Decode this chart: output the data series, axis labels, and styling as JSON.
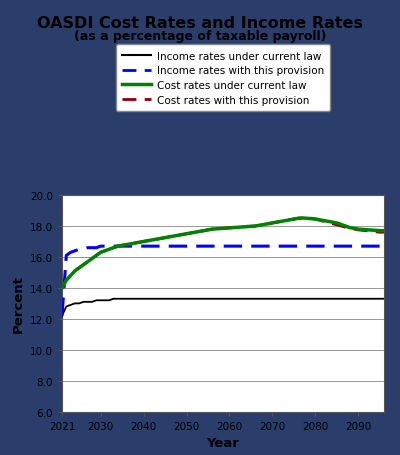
{
  "title": "OASDI Cost Rates and Income Rates",
  "subtitle": "(as a percentage of taxable payroll)",
  "xlabel": "Year",
  "ylabel": "Percent",
  "ylim": [
    6.0,
    20.0
  ],
  "yticks": [
    6.0,
    8.0,
    10.0,
    12.0,
    14.0,
    16.0,
    18.0,
    20.0
  ],
  "xticks": [
    2021,
    2030,
    2040,
    2050,
    2060,
    2070,
    2080,
    2090
  ],
  "outer_bg_color": "#2b3e6b",
  "inner_bg_color": "#aab8d0",
  "plot_bg_color": "#ffffff",
  "years": [
    2021,
    2022,
    2023,
    2024,
    2025,
    2026,
    2027,
    2028,
    2029,
    2030,
    2031,
    2032,
    2033,
    2034,
    2035,
    2036,
    2037,
    2038,
    2039,
    2040,
    2041,
    2042,
    2043,
    2044,
    2045,
    2046,
    2047,
    2048,
    2049,
    2050,
    2051,
    2052,
    2053,
    2054,
    2055,
    2056,
    2057,
    2058,
    2059,
    2060,
    2061,
    2062,
    2063,
    2064,
    2065,
    2066,
    2067,
    2068,
    2069,
    2070,
    2071,
    2072,
    2073,
    2074,
    2075,
    2076,
    2077,
    2078,
    2079,
    2080,
    2081,
    2082,
    2083,
    2084,
    2085,
    2086,
    2087,
    2088,
    2089,
    2090,
    2091,
    2092,
    2093,
    2094,
    2095,
    2096
  ],
  "income_current_law": [
    12.2,
    12.8,
    12.9,
    13.0,
    13.0,
    13.1,
    13.1,
    13.1,
    13.2,
    13.2,
    13.2,
    13.2,
    13.3,
    13.3,
    13.3,
    13.3,
    13.3,
    13.3,
    13.3,
    13.3,
    13.3,
    13.3,
    13.3,
    13.3,
    13.3,
    13.3,
    13.3,
    13.3,
    13.3,
    13.3,
    13.3,
    13.3,
    13.3,
    13.3,
    13.3,
    13.3,
    13.3,
    13.3,
    13.3,
    13.3,
    13.3,
    13.3,
    13.3,
    13.3,
    13.3,
    13.3,
    13.3,
    13.3,
    13.3,
    13.3,
    13.3,
    13.3,
    13.3,
    13.3,
    13.3,
    13.3,
    13.3,
    13.3,
    13.3,
    13.3,
    13.3,
    13.3,
    13.3,
    13.3,
    13.3,
    13.3,
    13.3,
    13.3,
    13.3,
    13.3,
    13.3,
    13.3,
    13.3,
    13.3,
    13.3,
    13.3
  ],
  "income_provision": [
    12.2,
    16.1,
    16.3,
    16.4,
    16.5,
    16.5,
    16.6,
    16.6,
    16.6,
    16.7,
    16.7,
    16.7,
    16.7,
    16.7,
    16.7,
    16.7,
    16.7,
    16.7,
    16.7,
    16.7,
    16.7,
    16.7,
    16.7,
    16.7,
    16.7,
    16.7,
    16.7,
    16.7,
    16.7,
    16.7,
    16.7,
    16.7,
    16.7,
    16.7,
    16.7,
    16.7,
    16.7,
    16.7,
    16.7,
    16.7,
    16.7,
    16.7,
    16.7,
    16.7,
    16.7,
    16.7,
    16.7,
    16.7,
    16.7,
    16.7,
    16.7,
    16.7,
    16.7,
    16.7,
    16.7,
    16.7,
    16.7,
    16.7,
    16.7,
    16.7,
    16.7,
    16.7,
    16.7,
    16.7,
    16.7,
    16.7,
    16.7,
    16.7,
    16.7,
    16.7,
    16.7,
    16.7,
    16.7,
    16.7,
    16.7,
    16.7
  ],
  "cost_current_law": [
    14.0,
    14.5,
    14.8,
    15.1,
    15.3,
    15.5,
    15.7,
    15.9,
    16.1,
    16.3,
    16.4,
    16.5,
    16.6,
    16.7,
    16.75,
    16.8,
    16.85,
    16.9,
    16.95,
    17.0,
    17.05,
    17.1,
    17.15,
    17.2,
    17.25,
    17.3,
    17.35,
    17.4,
    17.45,
    17.5,
    17.55,
    17.6,
    17.65,
    17.7,
    17.75,
    17.8,
    17.82,
    17.84,
    17.86,
    17.88,
    17.9,
    17.92,
    17.94,
    17.96,
    17.98,
    18.0,
    18.05,
    18.1,
    18.15,
    18.2,
    18.25,
    18.3,
    18.35,
    18.4,
    18.45,
    18.5,
    18.52,
    18.5,
    18.48,
    18.46,
    18.4,
    18.35,
    18.3,
    18.25,
    18.2,
    18.1,
    18.0,
    17.9,
    17.85,
    17.8,
    17.78,
    17.76,
    17.74,
    17.72,
    17.7,
    17.7
  ],
  "cost_provision": [
    14.0,
    14.5,
    14.8,
    15.1,
    15.3,
    15.5,
    15.7,
    15.9,
    16.1,
    16.3,
    16.4,
    16.5,
    16.6,
    16.7,
    16.75,
    16.8,
    16.85,
    16.9,
    16.95,
    17.0,
    17.05,
    17.1,
    17.15,
    17.2,
    17.25,
    17.3,
    17.35,
    17.4,
    17.45,
    17.5,
    17.55,
    17.6,
    17.65,
    17.7,
    17.75,
    17.8,
    17.82,
    17.84,
    17.86,
    17.88,
    17.9,
    17.92,
    17.94,
    17.96,
    17.98,
    18.0,
    18.05,
    18.1,
    18.15,
    18.2,
    18.25,
    18.3,
    18.35,
    18.4,
    18.45,
    18.5,
    18.52,
    18.5,
    18.48,
    18.44,
    18.38,
    18.3,
    18.22,
    18.15,
    18.08,
    18.0,
    17.92,
    17.85,
    17.8,
    17.75,
    17.72,
    17.69,
    17.66,
    17.63,
    17.6,
    17.6
  ],
  "income_current_law_color": "#000000",
  "income_provision_color": "#0000ff",
  "cost_current_law_color": "#008000",
  "cost_provision_color": "#8b0000",
  "legend_labels": [
    "Income rates under current law",
    "Income rates with this provision",
    "Cost rates under current law",
    "Cost rates with this provision"
  ]
}
